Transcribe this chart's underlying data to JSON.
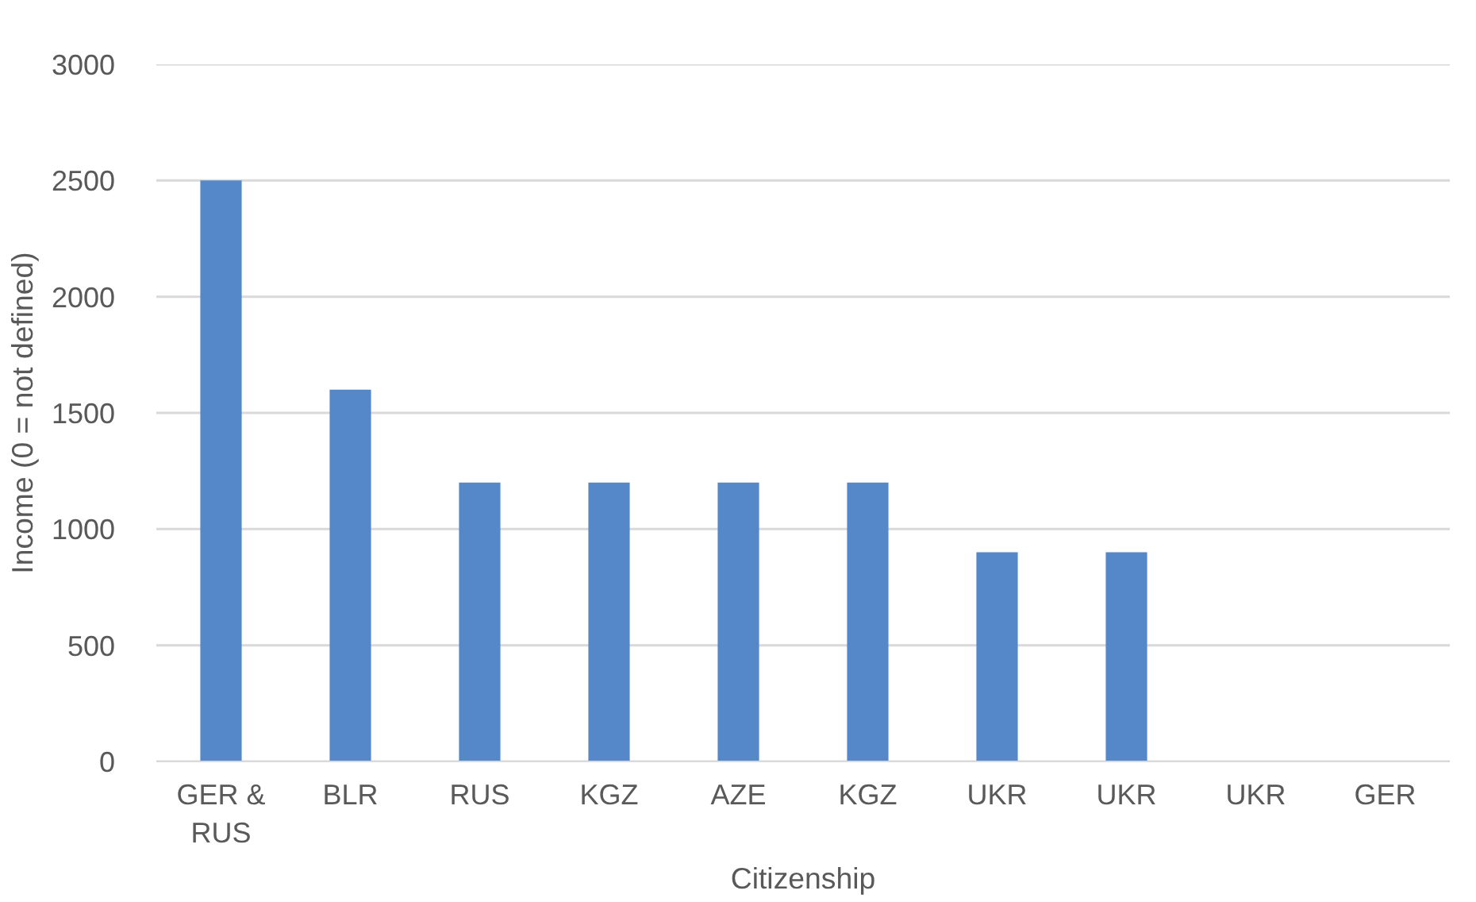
{
  "chart_data": {
    "type": "bar",
    "xlabel": "Citizenship",
    "ylabel": "Income (0 = not defined)",
    "categories": [
      "GER & RUS",
      "BLR",
      "RUS",
      "KGZ",
      "AZE",
      "KGZ",
      "UKR",
      "UKR",
      "UKR",
      "GER"
    ],
    "values": [
      2500,
      1600,
      1200,
      1200,
      1200,
      1200,
      900,
      900,
      0,
      0
    ],
    "color": "#5588c8",
    "ylim": [
      0,
      3000
    ],
    "yticks": [
      0,
      500,
      1000,
      1500,
      2000,
      2500,
      3000
    ],
    "grid": "y"
  }
}
